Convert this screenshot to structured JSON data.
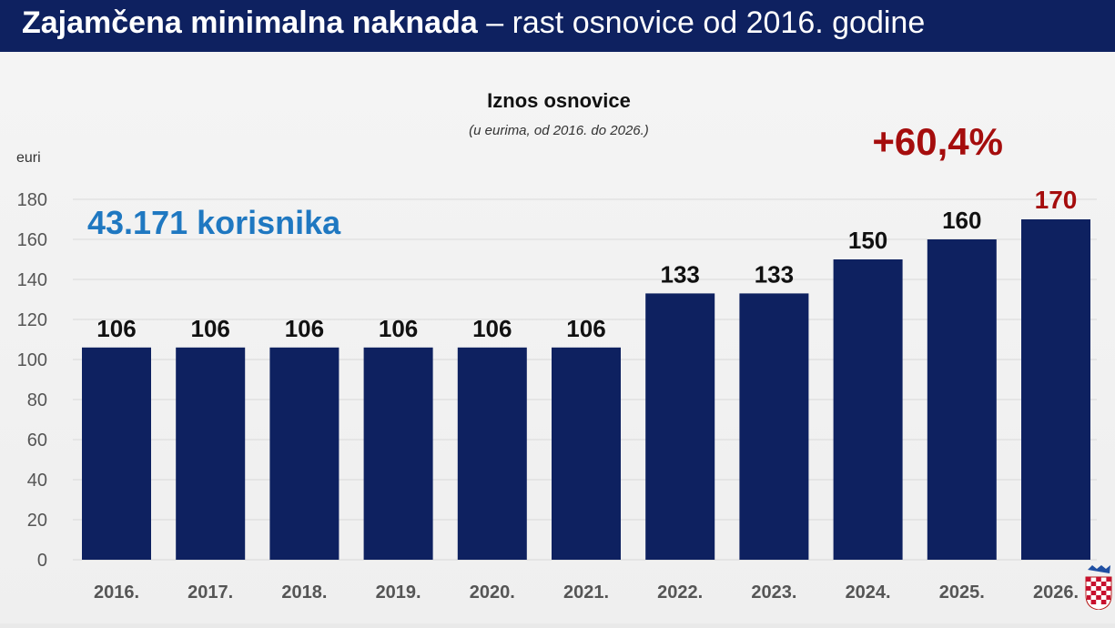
{
  "header": {
    "title_bold": "Zajamčena minimalna naknada",
    "title_rest": "– rast osnovice od 2016. godine"
  },
  "chart_data": {
    "type": "bar",
    "title": "Iznos osnovice",
    "subtitle": "(u eurima, od 2016. do 2026.)",
    "ylabel": "euri",
    "ylim": [
      0,
      180
    ],
    "yticks": [
      0,
      20,
      40,
      60,
      80,
      100,
      120,
      140,
      160,
      180
    ],
    "categories": [
      "2016.",
      "2017.",
      "2018.",
      "2019.",
      "2020.",
      "2021.",
      "2022.",
      "2023.",
      "2024.",
      "2025.",
      "2026."
    ],
    "values": [
      106,
      106,
      106,
      106,
      106,
      106,
      133,
      133,
      150,
      160,
      170
    ],
    "annotations": {
      "users": "43.171 korisnika",
      "growth": "+60,4%"
    },
    "colors": {
      "bar": "#0e2160",
      "label": "#111111",
      "highlight_label": "#a50d0d",
      "users": "#1f78c1",
      "growth": "#a50d0d",
      "axis_text": "#555555"
    },
    "grid": true,
    "legend": "none"
  },
  "crest": {
    "icon": "croatian-coat-of-arms-icon"
  }
}
